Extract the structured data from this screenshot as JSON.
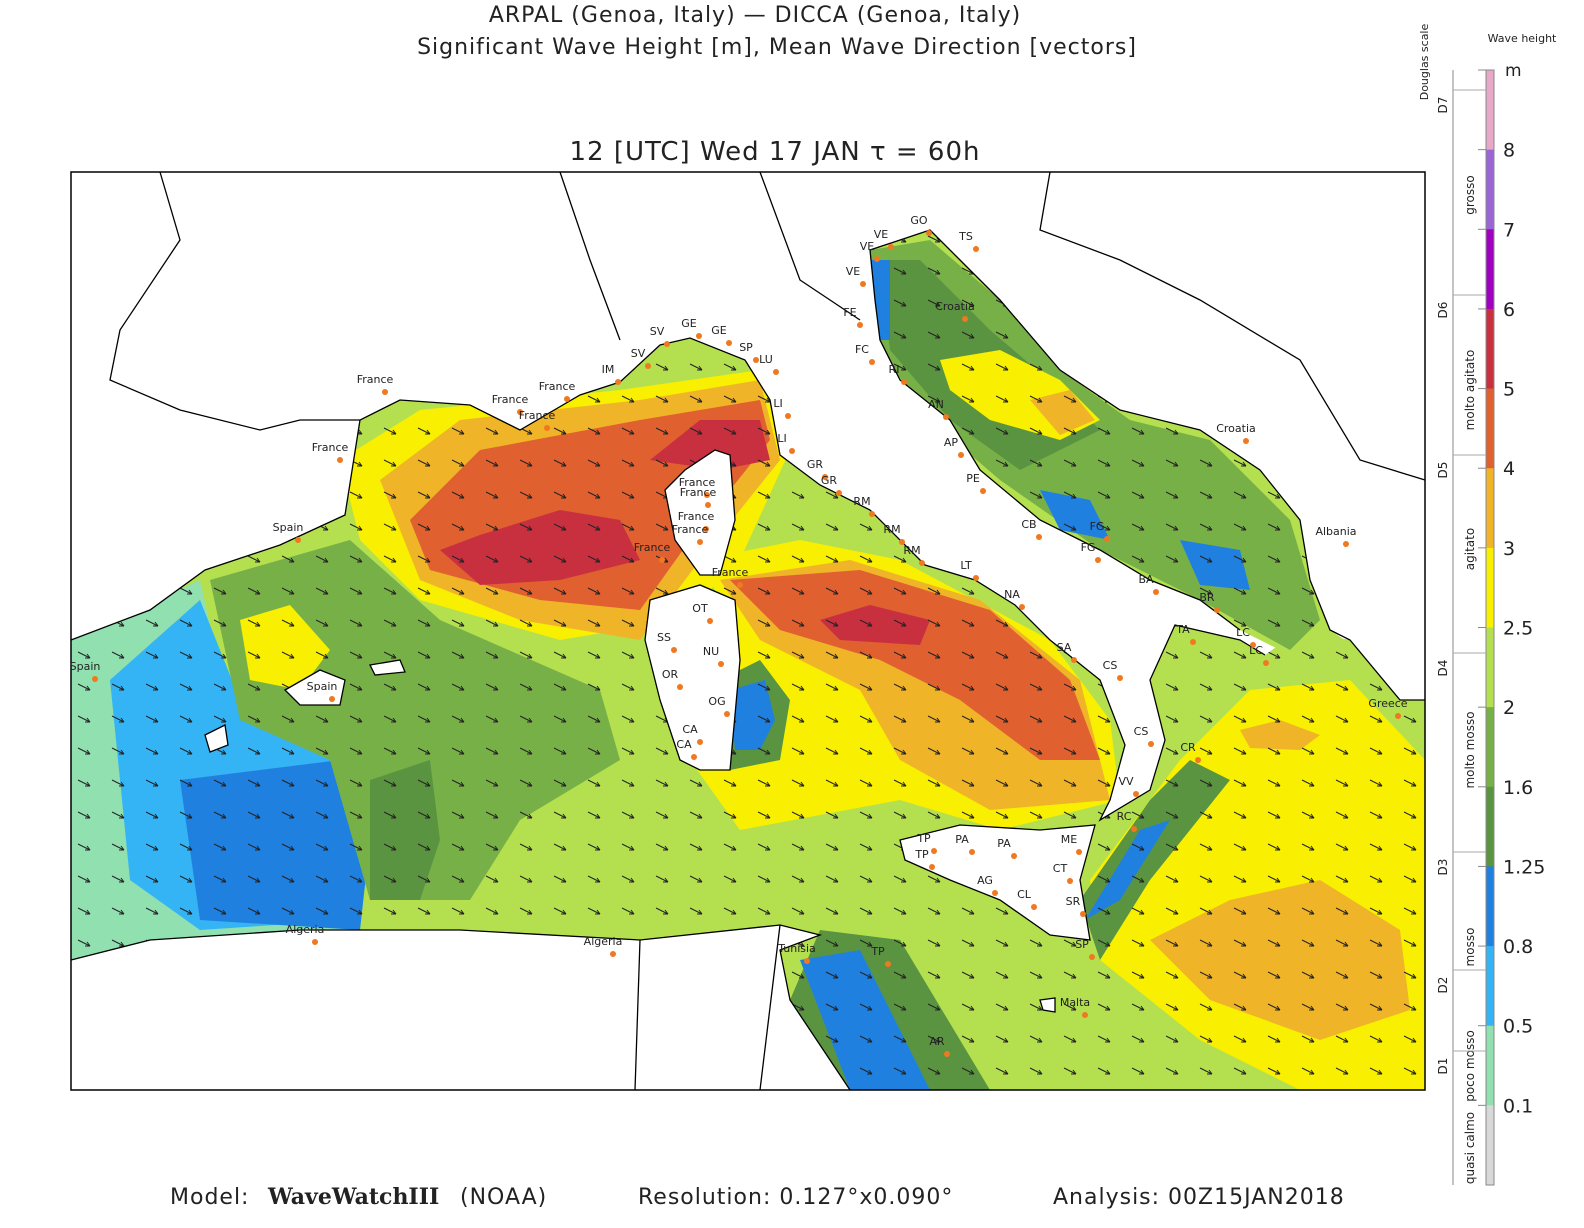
{
  "header": {
    "line1": "ARPAL (Genoa, Italy)  —  DICCA (Genoa, Italy)",
    "line2": "Significant Wave Height [m], Mean Wave Direction [vectors]",
    "time": "12 [UTC] Wed 17 JAN  τ = 60h"
  },
  "legend": {
    "title": "Wave height",
    "douglas_title": "Douglas scale",
    "unit": "m",
    "ticks": [
      8,
      7,
      6,
      5,
      4,
      3,
      2.5,
      2,
      1.6,
      1.25,
      0.8,
      0.5,
      0.1
    ],
    "colors": [
      "#e8a8c8",
      "#9a66d6",
      "#a000c0",
      "#c83040",
      "#e06030",
      "#f0b428",
      "#f8f000",
      "#b4e050",
      "#78b048",
      "#5a9440",
      "#2080e0",
      "#34b4f4",
      "#90e0b0",
      "#d8d8d8"
    ],
    "douglas": [
      {
        "code": "D7",
        "state": "grosso"
      },
      {
        "code": "D6",
        "state": "molto agitato"
      },
      {
        "code": "D5",
        "state": "agitato"
      },
      {
        "code": "D4",
        "state": "molto mosso"
      },
      {
        "code": "D3",
        "state": "mosso"
      },
      {
        "code": "D2",
        "state": "poco mosso"
      },
      {
        "code": "D1",
        "state": "quasi calmo"
      }
    ]
  },
  "places": [
    "France",
    "France",
    "France",
    "France",
    "France",
    "Spain",
    "Spain",
    "Spain",
    "Algeria",
    "Algeria",
    "Tunisia",
    "Malta",
    "TP",
    "AR",
    "IM",
    "SV",
    "SV",
    "GE",
    "GE",
    "SP",
    "LU",
    "LI",
    "LI",
    "GR",
    "GR",
    "France",
    "France",
    "France",
    "France",
    "France",
    "France",
    "RM",
    "RM",
    "RM",
    "LT",
    "NA",
    "SA",
    "CS",
    "CS",
    "VV",
    "RC",
    "ME",
    "CT",
    "SR",
    "SP",
    "PA",
    "PA",
    "TP",
    "TP",
    "AG",
    "CL",
    "OT",
    "SS",
    "NU",
    "OR",
    "OG",
    "CA",
    "CA",
    "VE",
    "VE",
    "VE",
    "GO",
    "TS",
    "FE",
    "FC",
    "RI",
    "AN",
    "AP",
    "PE",
    "CB",
    "FG",
    "FG",
    "BA",
    "BR",
    "TA",
    "LC",
    "LC",
    "CR",
    "Croatia",
    "Croatia",
    "Albania",
    "Greece"
  ],
  "footer": {
    "model_label": "Model:",
    "model": "WaveWatchIII",
    "agency": "(NOAA)",
    "resolution": "Resolution: 0.127°x0.090°",
    "analysis": "Analysis: 00Z15JAN2018"
  }
}
